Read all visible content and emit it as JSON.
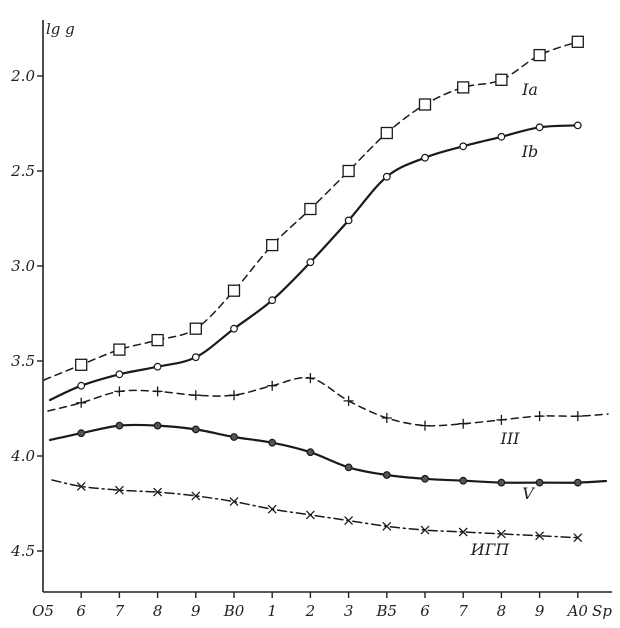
{
  "chart_data": {
    "type": "line",
    "ylabel": "lg g",
    "xlabel": "Sp",
    "x_ticks": [
      "O5",
      "6",
      "7",
      "8",
      "9",
      "B0",
      "1",
      "2",
      "3",
      "B5",
      "6",
      "7",
      "8",
      "9",
      "A0"
    ],
    "y_ticks": [
      "2.0",
      "2.5",
      "3.0",
      "3.5",
      "4.0",
      "4.5"
    ],
    "xlim": [
      -1,
      15
    ],
    "ylim": [
      4.8,
      1.7
    ],
    "y_inverted": true,
    "grid": false,
    "series": [
      {
        "name": "Ia",
        "line_style": "dashed",
        "marker": "square",
        "x": [
          1,
          2,
          3,
          4,
          5,
          6,
          7,
          8,
          9,
          10,
          11,
          12,
          13,
          14
        ],
        "y": [
          3.52,
          3.44,
          3.39,
          3.33,
          3.13,
          2.89,
          2.7,
          2.5,
          2.3,
          2.15,
          2.06,
          2.02,
          1.89,
          1.82
        ]
      },
      {
        "name": "Ib",
        "line_style": "solid",
        "marker": "circle",
        "x": [
          1,
          2,
          3,
          4,
          5,
          6,
          7,
          8,
          9,
          10,
          11,
          12,
          13,
          14
        ],
        "y": [
          3.63,
          3.57,
          3.53,
          3.48,
          3.33,
          3.18,
          2.98,
          2.76,
          2.53,
          2.43,
          2.37,
          2.32,
          2.27,
          2.26
        ]
      },
      {
        "name": "III",
        "line_style": "dashed",
        "marker": "plus",
        "x": [
          1,
          2,
          3,
          4,
          5,
          6,
          7,
          8,
          9,
          10,
          11,
          12,
          13,
          14
        ],
        "y": [
          3.72,
          3.66,
          3.66,
          3.68,
          3.68,
          3.63,
          3.59,
          3.71,
          3.8,
          3.84,
          3.83,
          3.81,
          3.79,
          3.79
        ]
      },
      {
        "name": "V",
        "line_style": "solid",
        "marker": "filled-circle",
        "x": [
          1,
          2,
          3,
          4,
          5,
          6,
          7,
          8,
          9,
          10,
          11,
          12,
          13,
          14
        ],
        "y": [
          3.88,
          3.84,
          3.84,
          3.86,
          3.9,
          3.93,
          3.98,
          4.06,
          4.1,
          4.12,
          4.13,
          4.14,
          4.14,
          4.14
        ]
      },
      {
        "name": "ИГП",
        "line_style": "dash-dot",
        "marker": "cross",
        "x": [
          1,
          2,
          3,
          4,
          5,
          6,
          7,
          8,
          9,
          10,
          11,
          12,
          13,
          14
        ],
        "y": [
          4.16,
          4.18,
          4.19,
          4.21,
          4.24,
          4.28,
          4.31,
          4.34,
          4.37,
          4.39,
          4.4,
          4.41,
          4.42,
          4.43
        ]
      }
    ]
  }
}
